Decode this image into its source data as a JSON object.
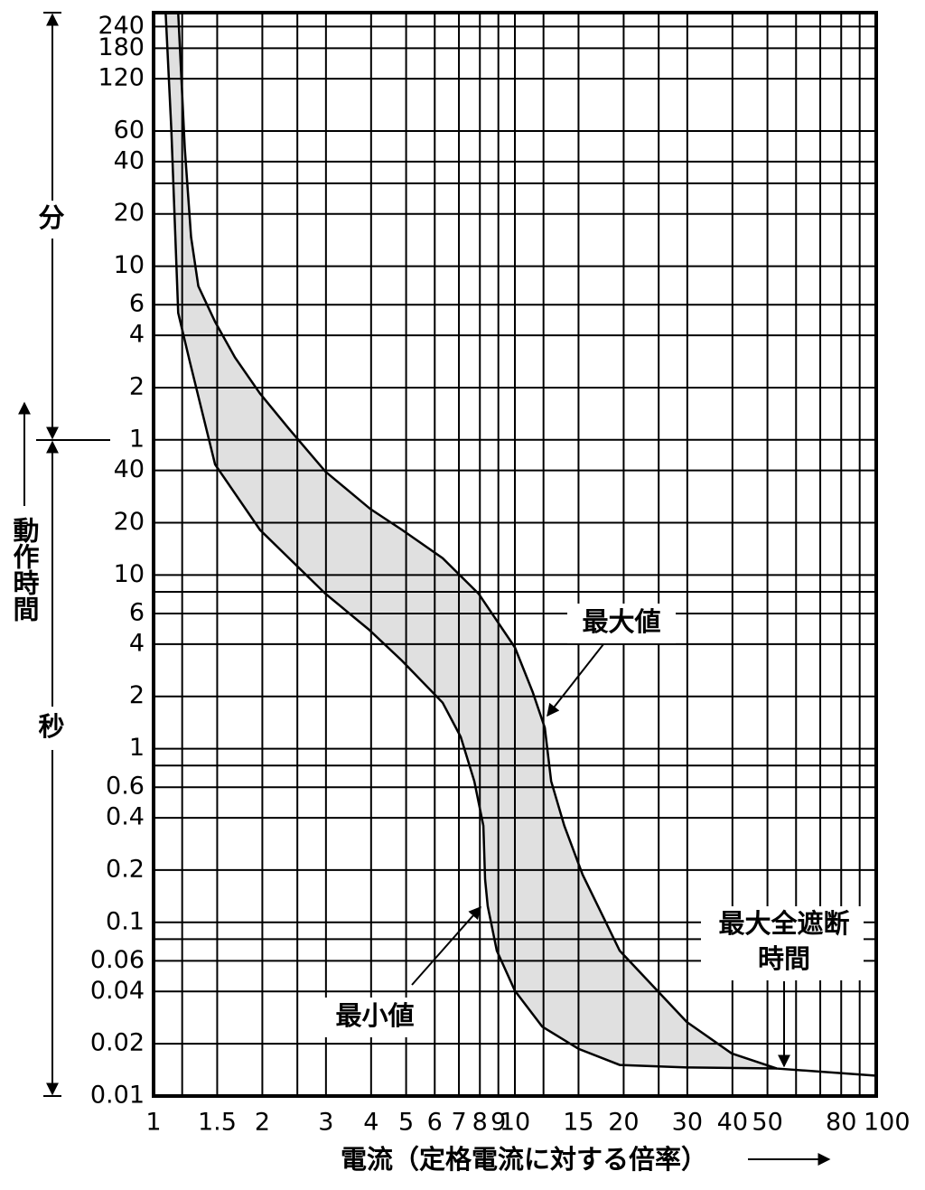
{
  "chart_data": {
    "type": "band",
    "x_label": "電流（定格電流に対する倍率）",
    "y_label": "動作時間",
    "y_section_labels": [
      "分",
      "秒"
    ],
    "x_log": true,
    "y_log": true,
    "grid": true,
    "xlim": [
      1,
      100
    ],
    "xticks": [
      1,
      1.5,
      2,
      3,
      4,
      5,
      6,
      7,
      8,
      9,
      10,
      15,
      20,
      30,
      40,
      50,
      80,
      100
    ],
    "x_minor_grid": [
      1.2,
      2.5,
      12,
      25,
      60,
      70,
      90
    ],
    "ylim": [
      0.01,
      17300
    ],
    "yticks": [
      {
        "value": 14400,
        "label": "240"
      },
      {
        "value": 10800,
        "label": "180"
      },
      {
        "value": 7200,
        "label": "120"
      },
      {
        "value": 3600,
        "label": "60"
      },
      {
        "value": 2400,
        "label": "40"
      },
      {
        "value": 1200,
        "label": "20"
      },
      {
        "value": 600,
        "label": "10"
      },
      {
        "value": 360,
        "label": "6"
      },
      {
        "value": 240,
        "label": "4"
      },
      {
        "value": 120,
        "label": "2"
      },
      {
        "value": 60,
        "label": "1"
      },
      40,
      20,
      10,
      6,
      4,
      2,
      1,
      0.6,
      0.4,
      0.2,
      0.1,
      0.06,
      0.04,
      0.02,
      0.01
    ],
    "y_minor_grid": [
      1800,
      8,
      0.8,
      0.08
    ],
    "band_color": "#e0e0e0",
    "series": [
      {
        "name": "最大値",
        "color": "#000000",
        "x": [
          1.17,
          1.22,
          1.27,
          1.33,
          1.48,
          1.68,
          1.97,
          2.37,
          2.99,
          3.98,
          4.87,
          6.31,
          7.94,
          10,
          11.2,
          12.1,
          12.6,
          13.7,
          15.4,
          19.5,
          29.9,
          39.8,
          53.1,
          100
        ],
        "values": [
          17300,
          2880,
          883,
          461,
          287,
          179,
          111,
          69.5,
          39.4,
          24,
          18.2,
          12.5,
          7.8,
          3.83,
          2.12,
          1.32,
          0.65,
          0.36,
          0.188,
          0.0687,
          0.0267,
          0.0176,
          0.0144,
          0.0131
        ]
      },
      {
        "name": "最小値",
        "color": "#000000",
        "x": [
          1.08,
          1.12,
          1.17,
          1.26,
          1.48,
          1.97,
          2.99,
          3.94,
          4.87,
          6.31,
          7.08,
          7.72,
          8.18,
          8.27,
          8.41,
          8.91,
          10,
          11.9,
          15,
          19.5,
          29.9,
          53.1
        ],
        "values": [
          17300,
          3650,
          323,
          169,
          43.3,
          18.2,
          7.8,
          4.86,
          3.21,
          1.84,
          1.17,
          0.65,
          0.36,
          0.177,
          0.124,
          0.0687,
          0.0404,
          0.0251,
          0.0187,
          0.0151,
          0.0146,
          0.0144
        ]
      }
    ],
    "annotation": [
      "最大全遮断",
      "時間"
    ]
  }
}
